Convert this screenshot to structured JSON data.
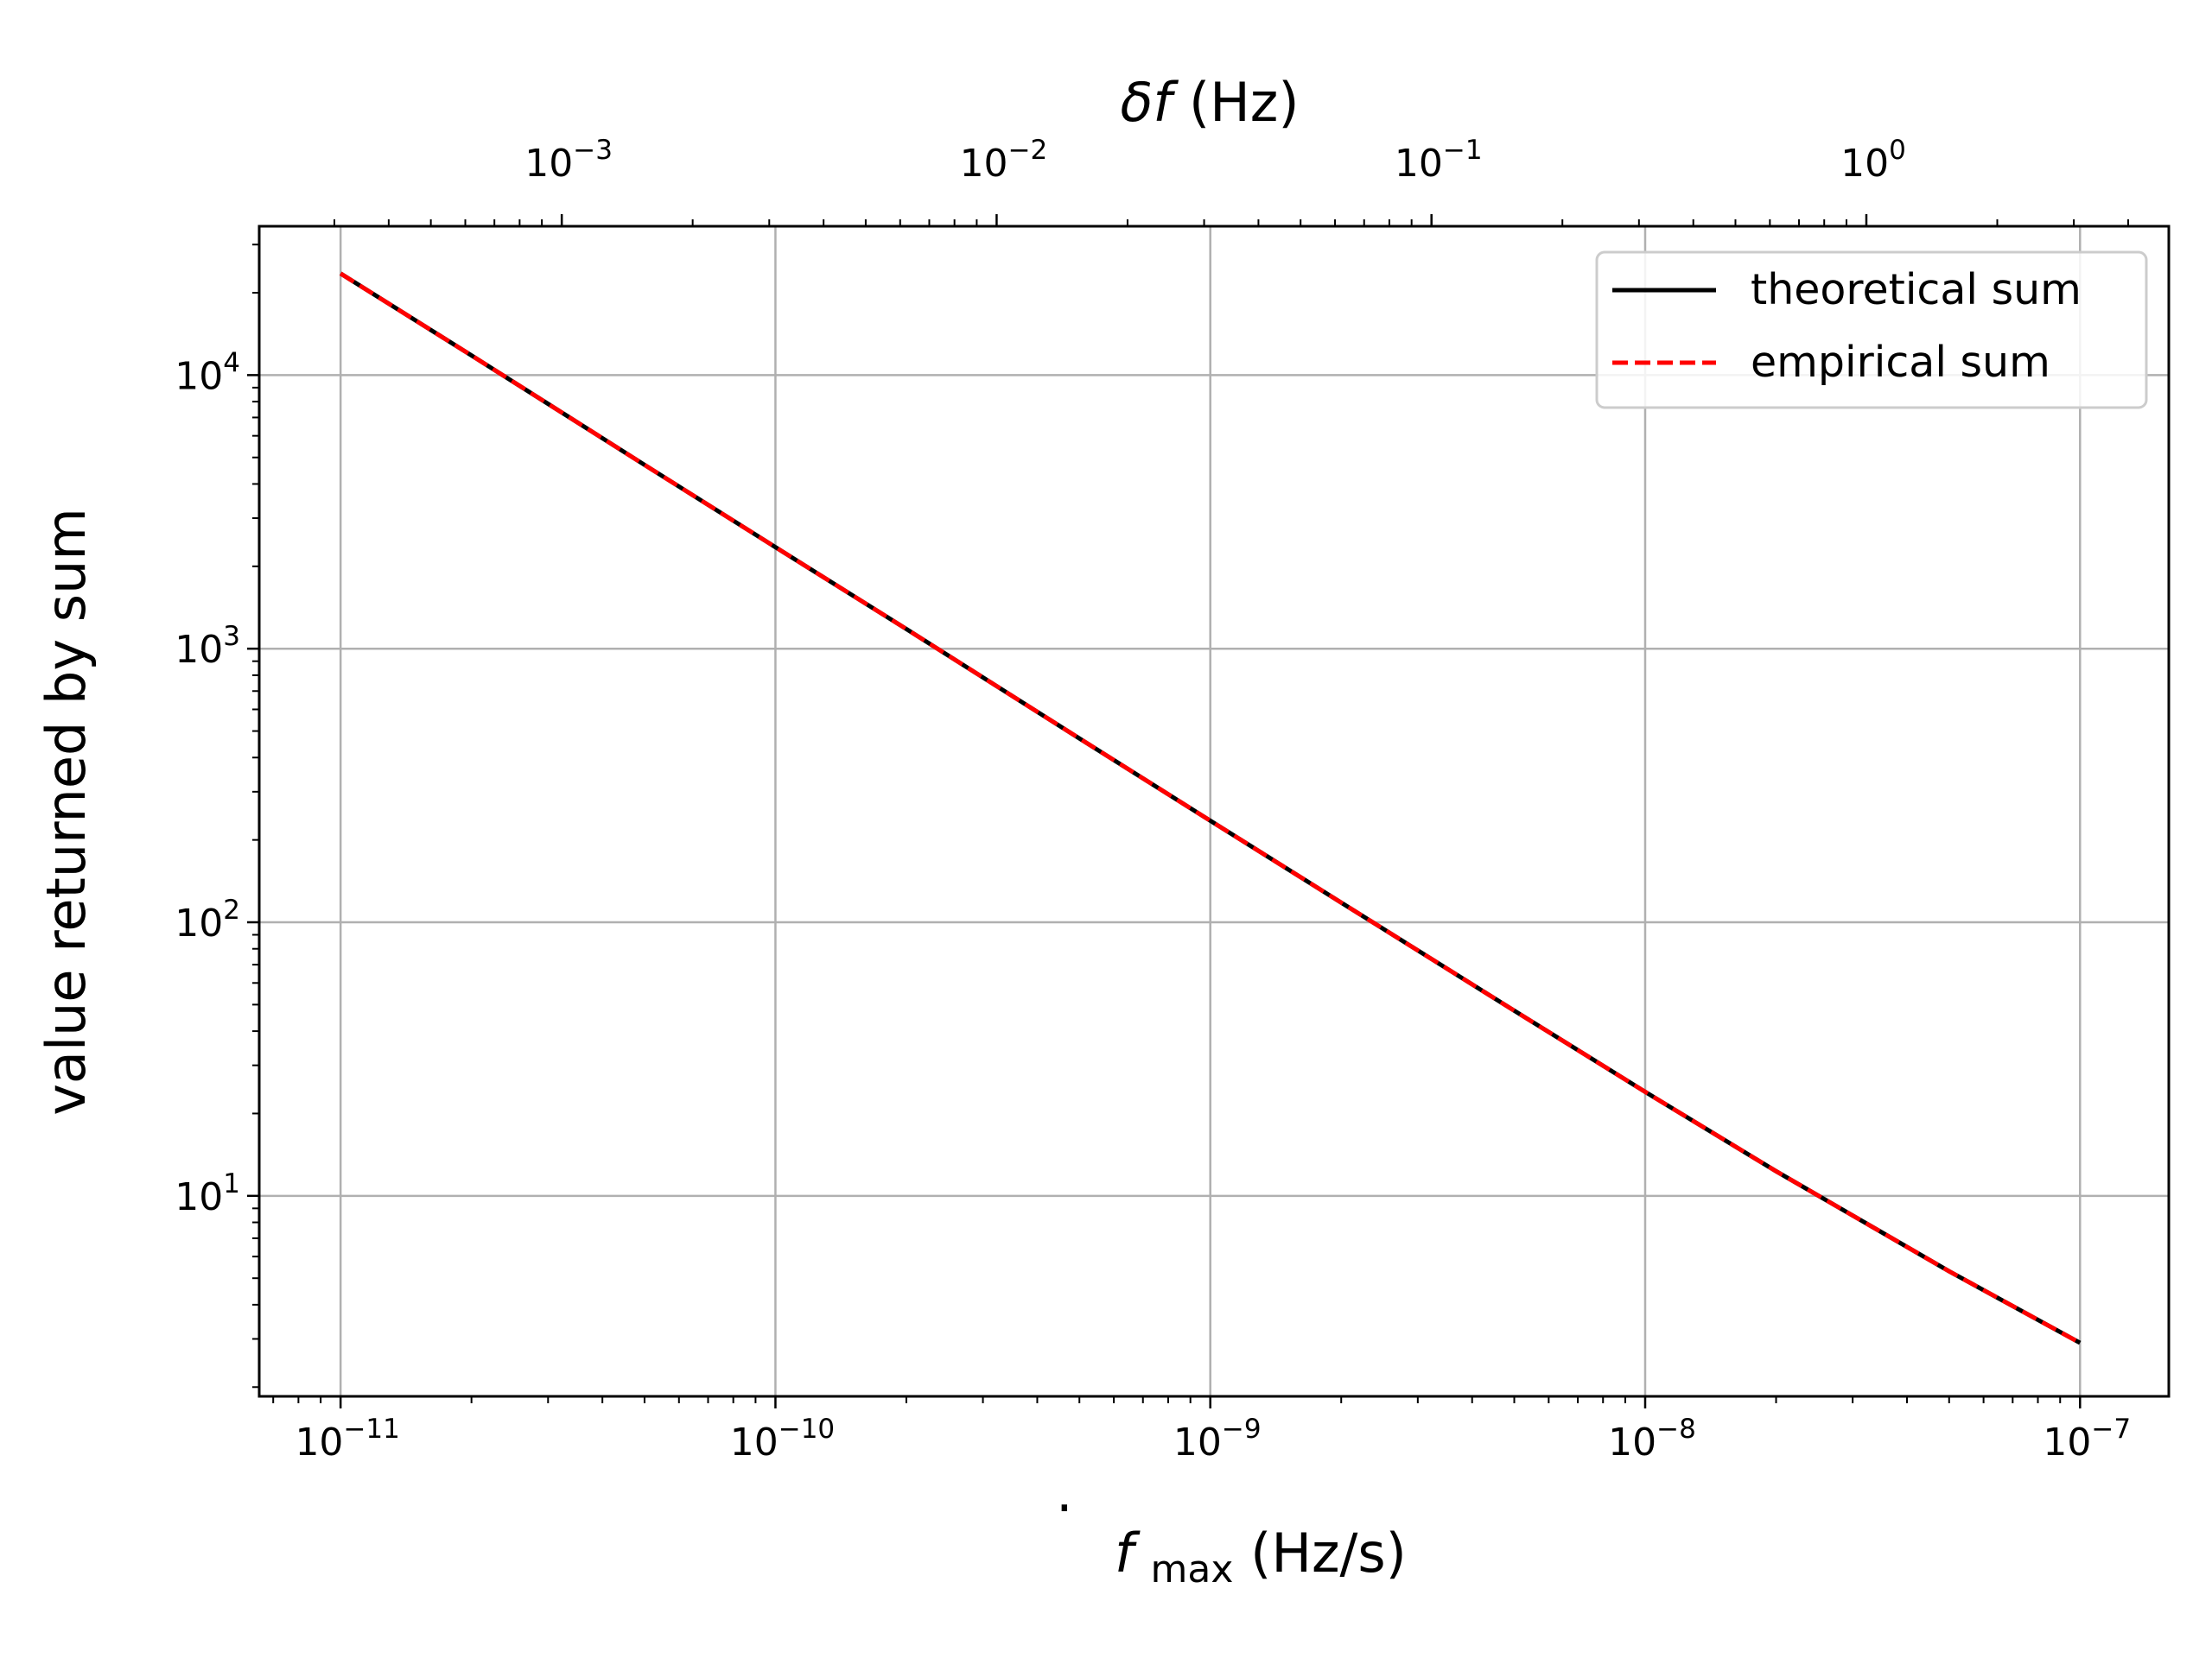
{
  "chart_data": {
    "type": "line",
    "xlabel": "max",
    "xlabel_prefix": "f",
    "xlabel_units": "(Hz/s)",
    "ylabel": "value returned by sum",
    "top_xlabel_symbol": "δf",
    "top_xlabel_units": "(Hz)",
    "xscale": "log",
    "yscale": "log",
    "xlim": [
      6.5e-12,
      1.6e-07
    ],
    "ylim": [
      1.85,
      35000
    ],
    "x_ticks": [
      {
        "value": 1e-11,
        "base": "10",
        "exp": "−11"
      },
      {
        "value": 1e-10,
        "base": "10",
        "exp": "−10"
      },
      {
        "value": 1e-09,
        "base": "10",
        "exp": "−9"
      },
      {
        "value": 1e-08,
        "base": "10",
        "exp": "−8"
      },
      {
        "value": 1e-07,
        "base": "10",
        "exp": "−7"
      }
    ],
    "y_ticks": [
      {
        "value": 10,
        "base": "10",
        "exp": "1"
      },
      {
        "value": 100,
        "base": "10",
        "exp": "2"
      },
      {
        "value": 1000,
        "base": "10",
        "exp": "3"
      },
      {
        "value": 10000,
        "base": "10",
        "exp": "4"
      }
    ],
    "top_axis": {
      "comment_relation": "deltaf = fdot_max * 3.1e7 s",
      "factor": 31000000.0,
      "ticks": [
        {
          "value": 0.001,
          "base": "10",
          "exp": "−3"
        },
        {
          "value": 0.01,
          "base": "10",
          "exp": "−2"
        },
        {
          "value": 0.1,
          "base": "10",
          "exp": "−1"
        },
        {
          "value": 1,
          "base": "10",
          "exp": "0"
        }
      ]
    },
    "grid": true,
    "legend_position": "top-right",
    "series": [
      {
        "name": "theoretical sum",
        "color": "#000000",
        "style": "solid",
        "x": [
          1e-11,
          2e-11,
          5e-11,
          1e-10,
          2e-10,
          5e-10,
          1e-09,
          2e-09,
          5e-09,
          1e-08,
          2e-08,
          5e-08,
          1e-07
        ],
        "y": [
          23500,
          11800,
          4700,
          2350,
          1180,
          470,
          235,
          118,
          47.5,
          24,
          12.3,
          5.3,
          2.9
        ]
      },
      {
        "name": "empirical sum",
        "color": "#ff0000",
        "style": "dashed",
        "x": [
          1e-11,
          2e-11,
          5e-11,
          1e-10,
          2e-10,
          5e-10,
          1e-09,
          2e-09,
          5e-09,
          1e-08,
          2e-08,
          5e-08,
          1e-07
        ],
        "y": [
          23500,
          11800,
          4700,
          2350,
          1180,
          470,
          235,
          118,
          47.5,
          24,
          12.3,
          5.3,
          2.9
        ]
      }
    ]
  }
}
